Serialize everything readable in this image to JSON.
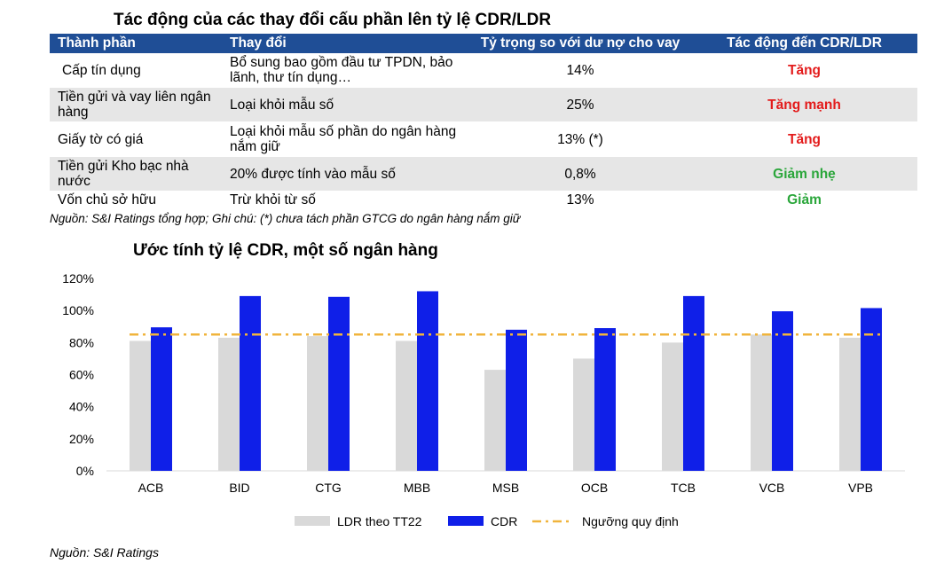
{
  "table": {
    "title": "Tác động của các thay đổi cấu phần lên tỷ lệ CDR/LDR",
    "headers": [
      "Thành phần",
      "Thay đổi",
      "Tỷ trọng so với dư nợ cho vay",
      "Tác động đến CDR/LDR"
    ],
    "rows": [
      {
        "component": "Cấp tín dụng",
        "change": "Bổ sung bao gồm đầu tư TPDN, bảo lãnh, thư tín dụng…",
        "share": "14%",
        "impact": "Tăng",
        "impact_color": "#e31b1b"
      },
      {
        "component": "Tiền gửi và vay liên ngân hàng",
        "change": "Loại khỏi mẫu số",
        "share": "25%",
        "impact": "Tăng mạnh",
        "impact_color": "#e31b1b"
      },
      {
        "component": "Giấy tờ có giá",
        "change": "Loại khỏi mẫu số phần do ngân hàng nắm giữ",
        "share": "13% (*)",
        "impact": "Tăng",
        "impact_color": "#e31b1b"
      },
      {
        "component": "Tiền gửi Kho bạc nhà nước",
        "change": "20% được tính vào mẫu số",
        "share": "0,8%",
        "impact": "Giảm nhẹ",
        "impact_color": "#2aa63a"
      },
      {
        "component": "Vốn chủ sở hữu",
        "change": "Trừ khỏi từ số",
        "share": "13%",
        "impact": "Giảm",
        "impact_color": "#2aa63a"
      }
    ],
    "note": "Nguồn: S&I Ratings tổng hợp; Ghi chú: (*) chưa tách phần GTCG do ngân hàng nắm giữ",
    "header_color": "#1f4e96"
  },
  "chart_data": {
    "type": "bar",
    "title": "Ước tính tỷ lệ CDR, một số ngân hàng",
    "categories": [
      "ACB",
      "BID",
      "CTG",
      "MBB",
      "MSB",
      "OCB",
      "TCB",
      "VCB",
      "VPB"
    ],
    "series": [
      {
        "name": "LDR theo TT22",
        "color": "#d9d9d9",
        "values": [
          81,
          83,
          84,
          81,
          63,
          70,
          80,
          85,
          83
        ]
      },
      {
        "name": "CDR",
        "color": "#0f1fe8",
        "values": [
          89.5,
          109,
          108.5,
          112,
          88,
          89,
          109,
          99.5,
          101.5
        ]
      }
    ],
    "threshold": {
      "name": "Ngưỡng quy định",
      "value": 85,
      "color": "#f0b43c"
    },
    "ylim": [
      0,
      120
    ],
    "yticks": [
      "0%",
      "20%",
      "40%",
      "60%",
      "80%",
      "100%",
      "120%"
    ],
    "ytick_values": [
      0,
      20,
      40,
      60,
      80,
      100,
      120
    ],
    "grid": true,
    "legend_position": "bottom"
  },
  "source": "Nguồn: S&I Ratings"
}
